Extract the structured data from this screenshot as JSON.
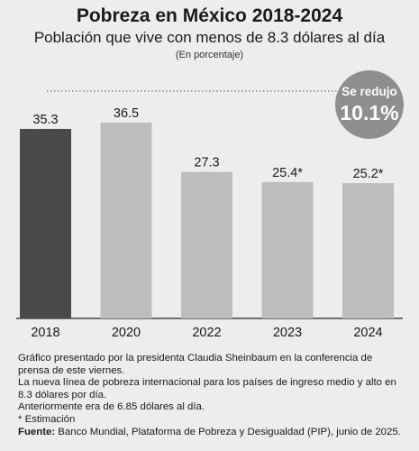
{
  "header": {
    "title": "Pobreza en México 2018-2024",
    "subtitle": "Población que vive con menos de 8.3 dólares al día",
    "unit": "(En porcentaje)"
  },
  "badge": {
    "line1": "Se redujo",
    "line2": "10.1%",
    "color": "#8e8e8e"
  },
  "chart_data": {
    "type": "bar",
    "categories": [
      "2018",
      "2020",
      "2022",
      "2023",
      "2024"
    ],
    "values": [
      35.3,
      36.5,
      27.3,
      25.4,
      25.2
    ],
    "value_labels": [
      "35.3",
      "36.5",
      "27.3",
      "25.4*",
      "25.2*"
    ],
    "colors": [
      "#4a4a4a",
      "#bdbdbd",
      "#bdbdbd",
      "#bdbdbd",
      "#bdbdbd"
    ],
    "title": "Pobreza en México 2018-2024",
    "subtitle": "Población que vive con menos de 8.3 dólares al día",
    "xlabel": "",
    "ylabel": "",
    "ylim": [
      0,
      40
    ],
    "grid": false,
    "legend": "none"
  },
  "notes": {
    "line1": "Gráfico presentado por la presidenta Claudia Sheinbaum en la conferencia de prensa de este viernes.",
    "line2": "La nueva línea de pobreza internacional para los países de ingreso medio y alto en 8.3 dólares por día.",
    "line3": "Anteriormente era de 6.85 dólares al día.",
    "line4": "* Estimación",
    "source_label": "Fuente:",
    "source_text": " Banco Mundial, Plataforma de Pobreza y Desigualdad (PIP), junio de 2025."
  }
}
